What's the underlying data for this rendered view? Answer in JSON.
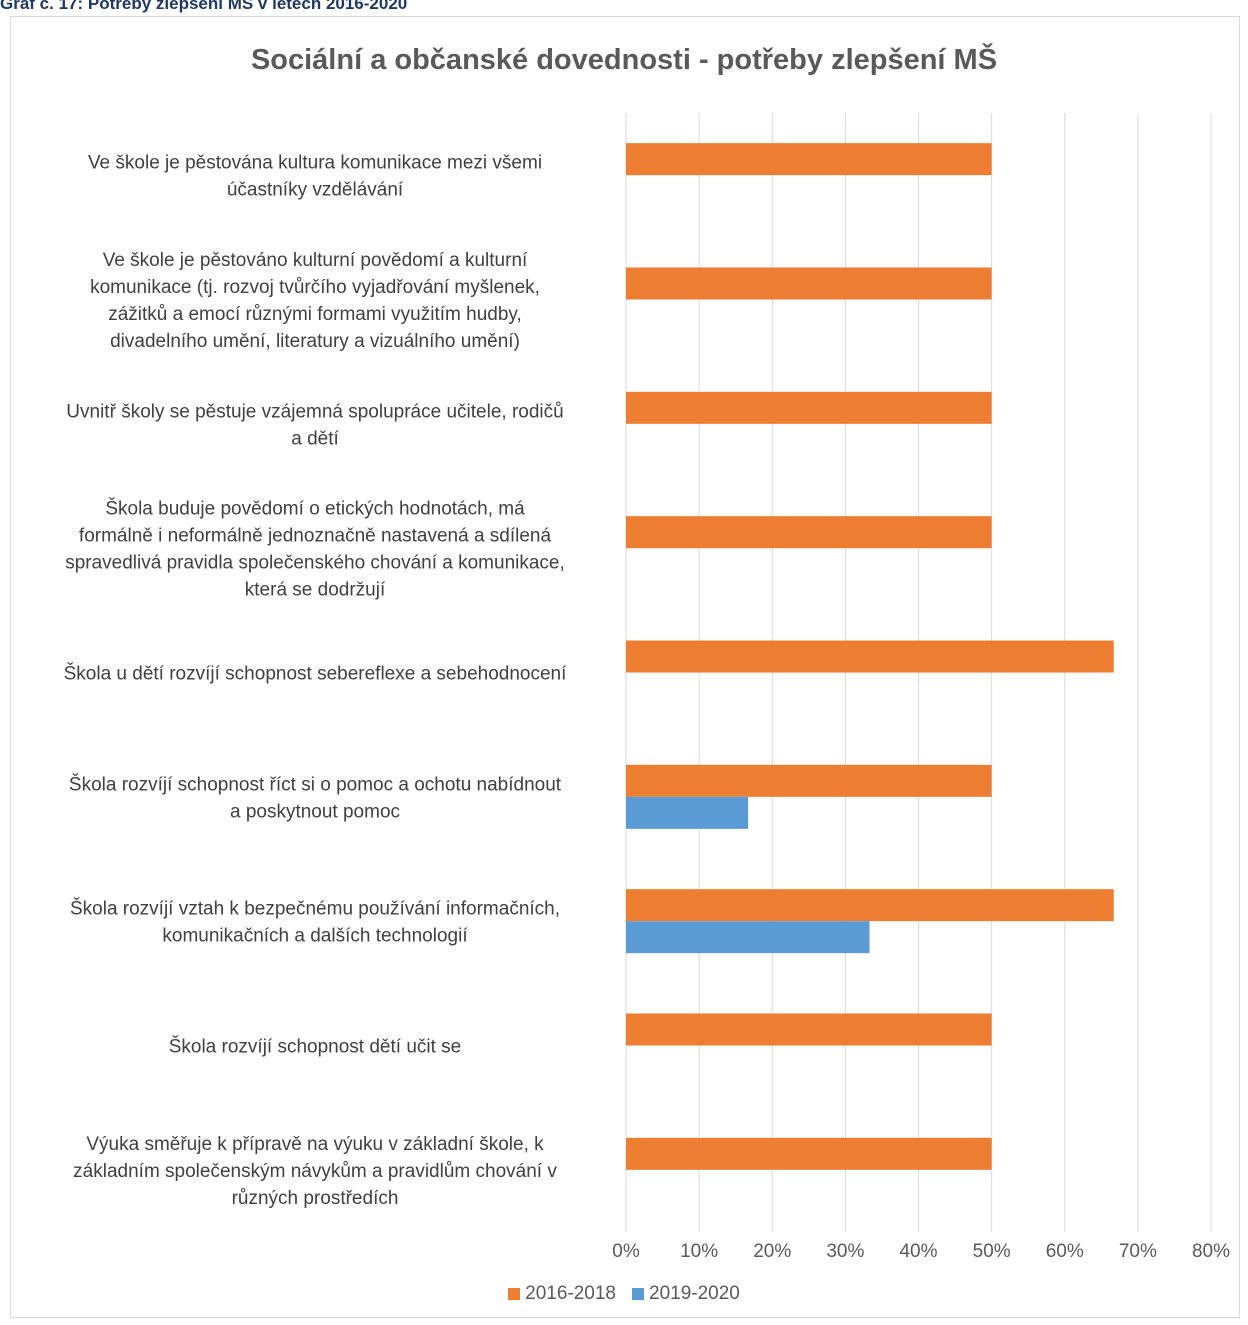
{
  "caption": "Graf č. 17: Potřeby zlepšení MŠ v letech 2016-2020",
  "chart_data": {
    "type": "bar",
    "orientation": "horizontal",
    "title": "Sociální a občanské dovednosti - potřeby zlepšení MŠ",
    "xlabel": "",
    "ylabel": "",
    "xlim": [
      0,
      80
    ],
    "x_ticks": [
      "0%",
      "10%",
      "20%",
      "30%",
      "40%",
      "50%",
      "60%",
      "70%",
      "80%"
    ],
    "grid": true,
    "legend_position": "bottom",
    "categories": [
      [
        "Ve škole je pěstována kultura komunikace mezi všemi",
        "účastníky vzdělávání"
      ],
      [
        "Ve škole je pěstováno kulturní povědomí a kulturní",
        "komunikace (tj. rozvoj tvůrčího vyjadřování myšlenek,",
        "zážitků a emocí různými formami využitím hudby,",
        "divadelního umění, literatury a vizuálního umění)"
      ],
      [
        "Uvnitř školy se pěstuje vzájemná spolupráce učitele, rodičů",
        "a dětí"
      ],
      [
        "Škola buduje povědomí o etických hodnotách, má",
        "formálně i neformálně jednoznačně nastavená a sdílená",
        "spravedlivá pravidla společenského chování a komunikace,",
        "která se dodržují"
      ],
      [
        "Škola u dětí rozvíjí schopnost sebereflexe a sebehodnocení"
      ],
      [
        "Škola rozvíjí schopnost říct si o pomoc a ochotu nabídnout",
        "a poskytnout pomoc"
      ],
      [
        "Škola rozvíjí vztah k bezpečnému používání informačních,",
        "komunikačních a dalších technologií"
      ],
      [
        "Škola rozvíjí schopnost dětí učit se"
      ],
      [
        "Výuka směřuje k přípravě na výuku v základní škole, k",
        "základním společenským návykům a pravidlům chování v",
        "různých prostředích"
      ]
    ],
    "series": [
      {
        "name": "2016-2018",
        "color": "#ed7d31",
        "values": [
          50,
          50,
          50,
          50,
          66.7,
          50,
          66.7,
          50,
          50
        ]
      },
      {
        "name": "2019-2020",
        "color": "#5b9bd5",
        "values": [
          0,
          0,
          0,
          0,
          0,
          16.7,
          33.3,
          0,
          0
        ]
      }
    ]
  }
}
